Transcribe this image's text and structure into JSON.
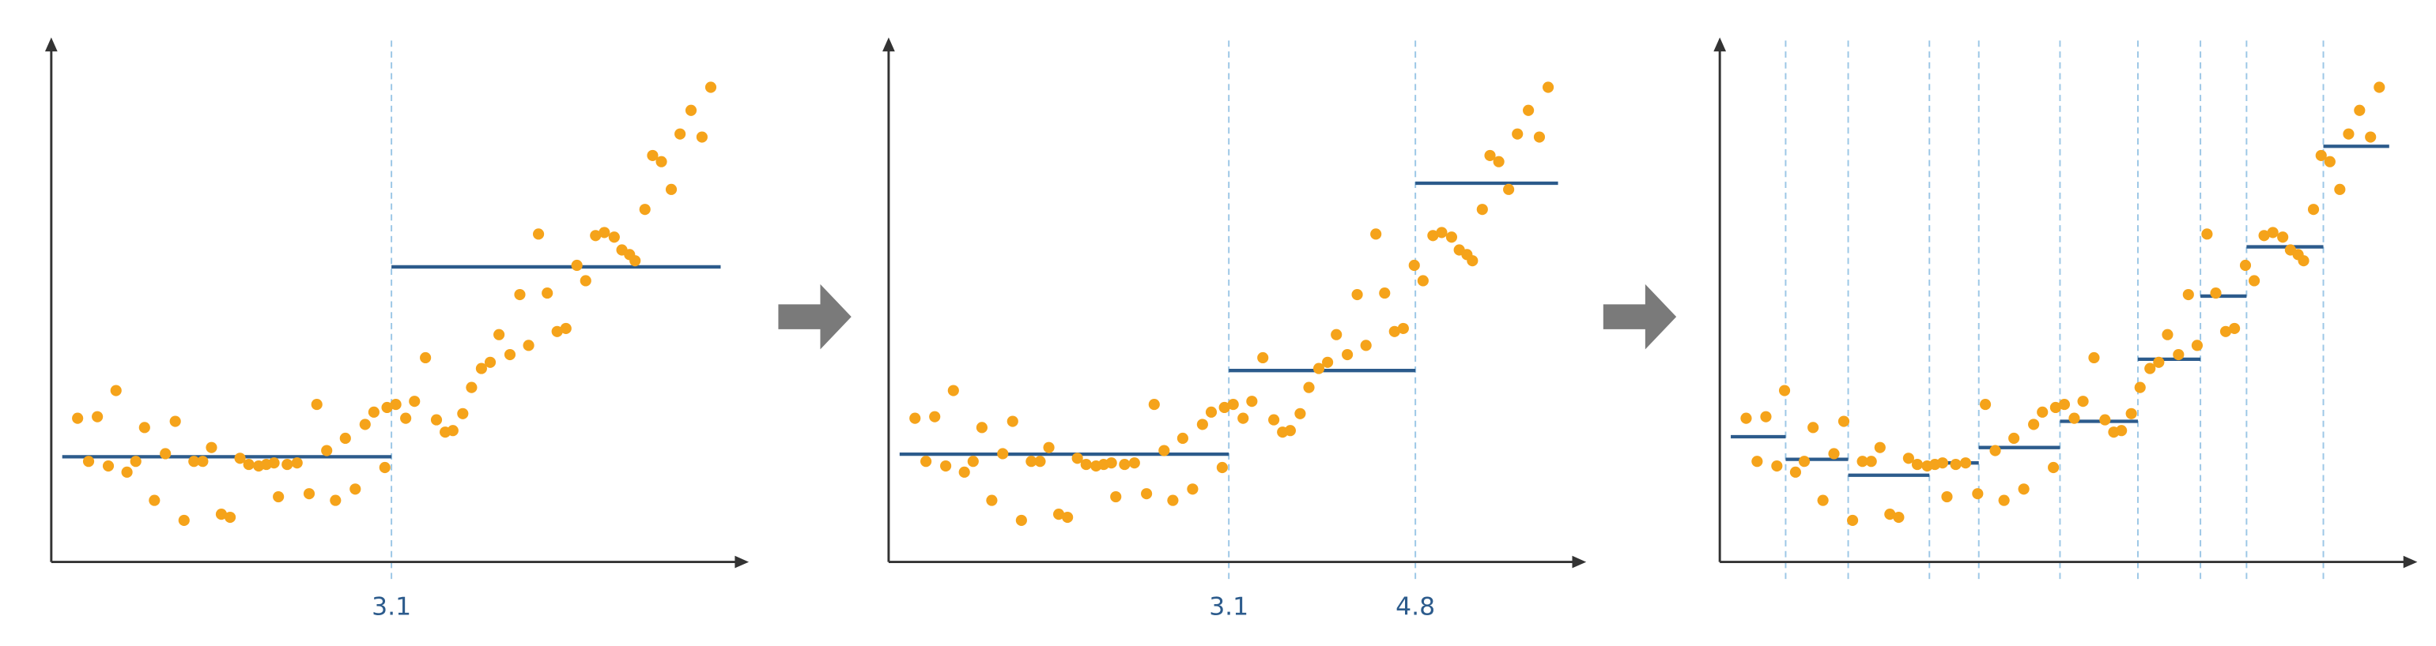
{
  "chart_data": [
    {
      "type": "scatter",
      "color": "#f5a31a",
      "xlim": [
        0,
        6.3
      ],
      "ylim": [
        0,
        10.1
      ],
      "xticks": [
        3.1
      ],
      "steps": [
        2.05,
        5.75
      ],
      "step_color": "#2c5b8c",
      "step_range": [
        0.1,
        6.1
      ],
      "x": [
        0.24,
        0.42,
        0.59,
        0.34,
        0.52,
        0.69,
        0.85,
        0.77,
        0.94,
        1.04,
        1.13,
        1.21,
        1.3,
        1.38,
        1.46,
        1.55,
        1.63,
        1.72,
        1.8,
        1.89,
        1.96,
        2.03,
        2.07,
        2.15,
        2.24,
        2.35,
        2.42,
        2.51,
        2.59,
        2.68,
        2.77,
        2.86,
        2.94,
        3.04,
        3.06,
        3.14,
        3.23,
        3.31,
        3.41,
        3.51,
        3.59,
        3.66,
        3.75,
        3.83,
        3.92,
        4.0,
        4.08,
        4.18,
        4.27,
        4.35,
        4.44,
        4.52,
        4.61,
        4.69,
        4.79,
        4.87,
        4.96,
        5.04,
        5.13,
        5.2,
        5.27,
        5.32,
        5.41,
        5.48,
        5.56,
        5.65,
        5.73,
        5.83,
        5.93,
        6.01
      ],
      "y": [
        2.8,
        2.83,
        3.34,
        1.96,
        1.87,
        1.75,
        2.62,
        1.96,
        1.2,
        2.11,
        2.74,
        0.81,
        1.96,
        1.96,
        2.23,
        0.93,
        0.87,
        2.02,
        1.9,
        1.87,
        1.9,
        1.93,
        1.27,
        1.9,
        1.93,
        1.33,
        3.07,
        2.17,
        1.2,
        2.41,
        1.42,
        2.68,
        2.92,
        1.84,
        3.01,
        3.07,
        2.8,
        3.13,
        3.98,
        2.77,
        2.53,
        2.56,
        2.89,
        3.4,
        3.77,
        3.89,
        4.43,
        4.04,
        5.21,
        4.22,
        6.39,
        5.24,
        4.49,
        4.55,
        5.78,
        5.48,
        6.36,
        6.42,
        6.33,
        6.08,
        5.99,
        5.87,
        6.87,
        7.92,
        7.8,
        7.26,
        8.34,
        8.8,
        8.28,
        9.25
      ]
    },
    {
      "type": "scatter",
      "color": "#f5a31a",
      "xlim": [
        0,
        6.3
      ],
      "ylim": [
        0,
        10.1
      ],
      "xticks": [
        3.1,
        4.8
      ],
      "steps": [
        2.1,
        3.73,
        7.38
      ],
      "step_color": "#2c5b8c",
      "step_range": [
        0.1,
        6.1
      ],
      "x": [
        0.24,
        0.42,
        0.59,
        0.34,
        0.52,
        0.69,
        0.85,
        0.77,
        0.94,
        1.04,
        1.13,
        1.21,
        1.3,
        1.38,
        1.46,
        1.55,
        1.63,
        1.72,
        1.8,
        1.89,
        1.96,
        2.03,
        2.07,
        2.15,
        2.24,
        2.35,
        2.42,
        2.51,
        2.59,
        2.68,
        2.77,
        2.86,
        2.94,
        3.04,
        3.06,
        3.14,
        3.23,
        3.31,
        3.41,
        3.51,
        3.59,
        3.66,
        3.75,
        3.83,
        3.92,
        4.0,
        4.08,
        4.18,
        4.27,
        4.35,
        4.44,
        4.52,
        4.61,
        4.69,
        4.79,
        4.87,
        4.96,
        5.04,
        5.13,
        5.2,
        5.27,
        5.32,
        5.41,
        5.48,
        5.56,
        5.65,
        5.73,
        5.83,
        5.93,
        6.01
      ],
      "y": [
        2.8,
        2.83,
        3.34,
        1.96,
        1.87,
        1.75,
        2.62,
        1.96,
        1.2,
        2.11,
        2.74,
        0.81,
        1.96,
        1.96,
        2.23,
        0.93,
        0.87,
        2.02,
        1.9,
        1.87,
        1.9,
        1.93,
        1.27,
        1.9,
        1.93,
        1.33,
        3.07,
        2.17,
        1.2,
        2.41,
        1.42,
        2.68,
        2.92,
        1.84,
        3.01,
        3.07,
        2.8,
        3.13,
        3.98,
        2.77,
        2.53,
        2.56,
        2.89,
        3.4,
        3.77,
        3.89,
        4.43,
        4.04,
        5.21,
        4.22,
        6.39,
        5.24,
        4.49,
        4.55,
        5.78,
        5.48,
        6.36,
        6.42,
        6.33,
        6.08,
        5.99,
        5.87,
        6.87,
        7.92,
        7.8,
        7.26,
        8.34,
        8.8,
        8.28,
        9.25
      ]
    },
    {
      "type": "scatter",
      "color": "#f5a31a",
      "xlim": [
        0,
        6.3
      ],
      "ylim": [
        0,
        10.1
      ],
      "splits": [
        0.6,
        1.17,
        1.91,
        2.36,
        3.1,
        3.81,
        4.38,
        4.8,
        5.5
      ],
      "steps": [
        2.44,
        2.0,
        1.69,
        1.93,
        2.23,
        2.74,
        3.95,
        5.18,
        6.14,
        8.1
      ],
      "step_color": "#2c5b8c",
      "step_range": [
        0.1,
        6.1
      ],
      "x": [
        0.24,
        0.42,
        0.59,
        0.34,
        0.52,
        0.69,
        0.85,
        0.77,
        0.94,
        1.04,
        1.13,
        1.21,
        1.3,
        1.38,
        1.46,
        1.55,
        1.63,
        1.72,
        1.8,
        1.89,
        1.96,
        2.03,
        2.07,
        2.15,
        2.24,
        2.35,
        2.42,
        2.51,
        2.59,
        2.68,
        2.77,
        2.86,
        2.94,
        3.04,
        3.06,
        3.14,
        3.23,
        3.31,
        3.41,
        3.51,
        3.59,
        3.66,
        3.75,
        3.83,
        3.92,
        4.0,
        4.08,
        4.18,
        4.27,
        4.35,
        4.44,
        4.52,
        4.61,
        4.69,
        4.79,
        4.87,
        4.96,
        5.04,
        5.13,
        5.2,
        5.27,
        5.32,
        5.41,
        5.48,
        5.56,
        5.65,
        5.73,
        5.83,
        5.93,
        6.01
      ],
      "y": [
        2.8,
        2.83,
        3.34,
        1.96,
        1.87,
        1.75,
        2.62,
        1.96,
        1.2,
        2.11,
        2.74,
        0.81,
        1.96,
        1.96,
        2.23,
        0.93,
        0.87,
        2.02,
        1.9,
        1.87,
        1.9,
        1.93,
        1.27,
        1.9,
        1.93,
        1.33,
        3.07,
        2.17,
        1.2,
        2.41,
        1.42,
        2.68,
        2.92,
        1.84,
        3.01,
        3.07,
        2.8,
        3.13,
        3.98,
        2.77,
        2.53,
        2.56,
        2.89,
        3.4,
        3.77,
        3.89,
        4.43,
        4.04,
        5.21,
        4.22,
        6.39,
        5.24,
        4.49,
        4.55,
        5.78,
        5.48,
        6.36,
        6.42,
        6.33,
        6.08,
        5.99,
        5.87,
        6.87,
        7.92,
        7.8,
        7.26,
        8.34,
        8.8,
        8.28,
        9.25
      ]
    }
  ]
}
